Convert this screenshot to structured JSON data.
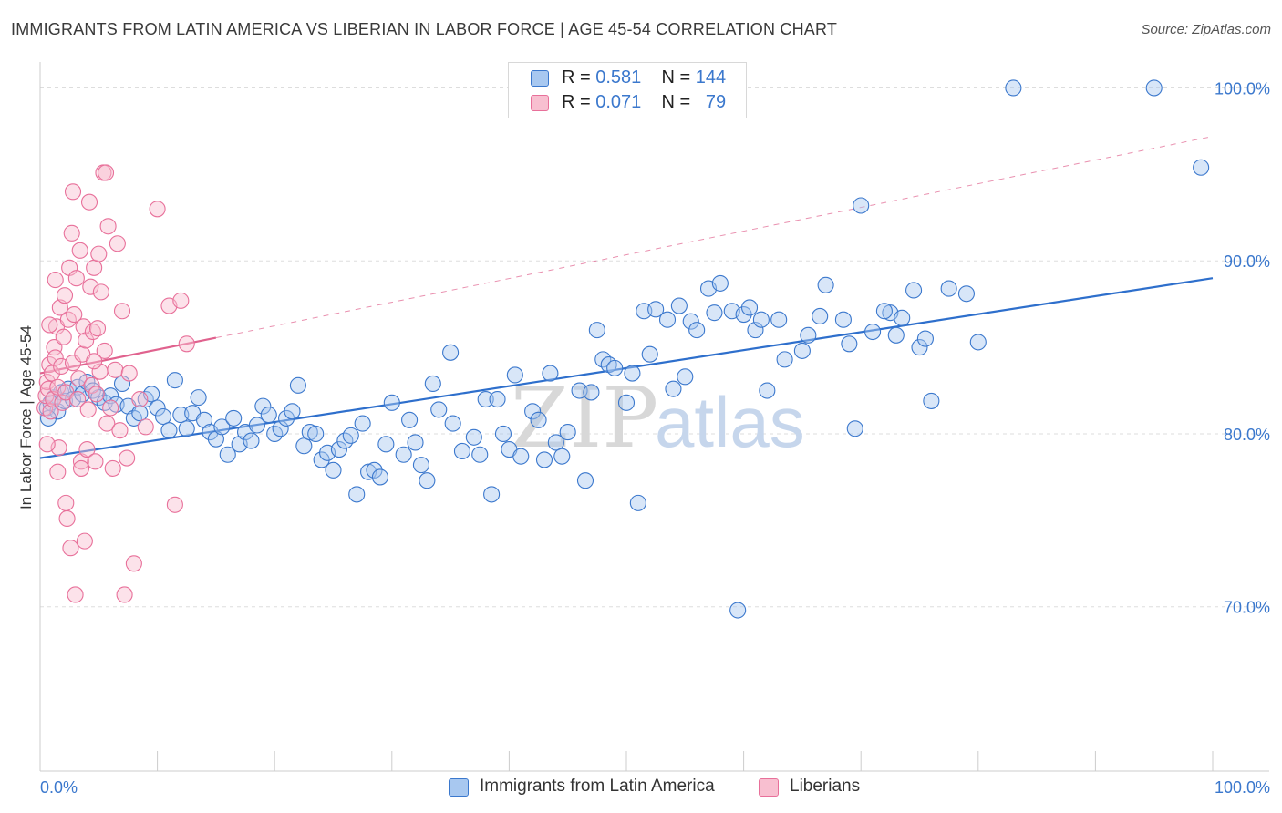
{
  "title": "IMMIGRANTS FROM LATIN AMERICA VS LIBERIAN IN LABOR FORCE | AGE 45-54 CORRELATION CHART",
  "source": "Source: ZipAtlas.com",
  "watermark": {
    "zip": "ZIP",
    "atlas": "atlas"
  },
  "legend_top": {
    "rows": [
      {
        "r_label": "R =",
        "r_value": "0.581",
        "n_label": "N =",
        "n_value": "144"
      },
      {
        "r_label": "R =",
        "r_value": "0.071",
        "n_label": "N =",
        "n_value": "79"
      }
    ]
  },
  "legend_bottom": {
    "items": [
      {
        "label": "Immigrants from Latin America"
      },
      {
        "label": "Liberians"
      }
    ]
  },
  "colors": {
    "blue_fill": "#a8c8f0",
    "blue_stroke": "#3b78cd",
    "blue_line": "#2e6fcc",
    "pink_fill": "#f8bfd0",
    "pink_stroke": "#e8709a",
    "pink_line": "#e0628e",
    "grid": "#dddddd",
    "axis_label": "#3b78cd"
  },
  "chart_data": {
    "type": "scatter",
    "title": "IMMIGRANTS FROM LATIN AMERICA VS LIBERIAN IN LABOR FORCE | AGE 45-54 CORRELATION CHART",
    "xlabel": "",
    "ylabel": "In Labor Force | Age 45-54",
    "xlim": [
      0,
      100
    ],
    "ylim": [
      60.5,
      101.5
    ],
    "x_tick_labels": [
      "0.0%",
      "100.0%"
    ],
    "y_ticks": [
      {
        "value": 70,
        "label": "70.0%"
      },
      {
        "value": 80,
        "label": "80.0%"
      },
      {
        "value": 90,
        "label": "90.0%"
      },
      {
        "value": 100,
        "label": "100.0%"
      }
    ],
    "series": [
      {
        "name": "Immigrants from Latin America",
        "R": 0.581,
        "N": 144,
        "trend": {
          "x0": 0,
          "y0": 78.6,
          "x1": 100,
          "y1": 89.0,
          "style": "solid"
        },
        "points": [
          [
            0.6,
            81.5
          ],
          [
            0.9,
            81.8
          ],
          [
            1.2,
            82.1
          ],
          [
            1.5,
            81.3
          ],
          [
            1.8,
            82.4
          ],
          [
            2.1,
            81.9
          ],
          [
            2.4,
            82.6
          ],
          [
            0.7,
            80.9
          ],
          [
            2.8,
            82.0
          ],
          [
            3.2,
            82.7
          ],
          [
            3.6,
            82.3
          ],
          [
            4.0,
            83.0
          ],
          [
            4.5,
            82.5
          ],
          [
            5.0,
            82.1
          ],
          [
            5.5,
            81.8
          ],
          [
            6.0,
            82.2
          ],
          [
            6.5,
            81.7
          ],
          [
            7.0,
            82.9
          ],
          [
            7.5,
            81.6
          ],
          [
            8.0,
            80.9
          ],
          [
            8.5,
            81.2
          ],
          [
            9.0,
            82.0
          ],
          [
            9.5,
            82.3
          ],
          [
            10.0,
            81.5
          ],
          [
            10.5,
            81.0
          ],
          [
            11.0,
            80.2
          ],
          [
            11.5,
            83.1
          ],
          [
            12.0,
            81.1
          ],
          [
            12.5,
            80.3
          ],
          [
            13.0,
            81.2
          ],
          [
            13.5,
            82.1
          ],
          [
            14.0,
            80.8
          ],
          [
            14.5,
            80.1
          ],
          [
            15.0,
            79.7
          ],
          [
            15.5,
            80.4
          ],
          [
            16.0,
            78.8
          ],
          [
            16.5,
            80.9
          ],
          [
            17.0,
            79.4
          ],
          [
            17.5,
            80.1
          ],
          [
            18.0,
            79.6
          ],
          [
            18.5,
            80.5
          ],
          [
            19.0,
            81.6
          ],
          [
            19.5,
            81.1
          ],
          [
            20.0,
            80.0
          ],
          [
            20.5,
            80.3
          ],
          [
            21.0,
            80.9
          ],
          [
            21.5,
            81.3
          ],
          [
            22.0,
            82.8
          ],
          [
            22.5,
            79.3
          ],
          [
            23.0,
            80.1
          ],
          [
            23.5,
            80.0
          ],
          [
            24.0,
            78.5
          ],
          [
            24.5,
            78.9
          ],
          [
            25.0,
            77.9
          ],
          [
            25.5,
            79.1
          ],
          [
            26.0,
            79.6
          ],
          [
            26.5,
            79.9
          ],
          [
            27.0,
            76.5
          ],
          [
            27.5,
            80.6
          ],
          [
            28.0,
            77.8
          ],
          [
            28.5,
            77.9
          ],
          [
            29.0,
            77.5
          ],
          [
            29.5,
            79.4
          ],
          [
            30.0,
            81.8
          ],
          [
            31.0,
            78.8
          ],
          [
            31.5,
            80.8
          ],
          [
            32.0,
            79.5
          ],
          [
            32.5,
            78.2
          ],
          [
            33.0,
            77.3
          ],
          [
            33.5,
            82.9
          ],
          [
            34.0,
            81.4
          ],
          [
            35.0,
            84.7
          ],
          [
            35.2,
            80.6
          ],
          [
            36.0,
            79.0
          ],
          [
            37.0,
            79.8
          ],
          [
            37.5,
            78.8
          ],
          [
            38.0,
            82.0
          ],
          [
            38.5,
            76.5
          ],
          [
            39.0,
            82.0
          ],
          [
            39.5,
            80.0
          ],
          [
            40.0,
            79.1
          ],
          [
            40.5,
            83.4
          ],
          [
            41.0,
            78.7
          ],
          [
            42.0,
            81.3
          ],
          [
            42.5,
            80.8
          ],
          [
            43.0,
            78.5
          ],
          [
            43.5,
            83.5
          ],
          [
            44.0,
            79.5
          ],
          [
            44.5,
            78.7
          ],
          [
            45.0,
            80.1
          ],
          [
            46.0,
            82.5
          ],
          [
            46.5,
            77.3
          ],
          [
            47.0,
            82.4
          ],
          [
            47.5,
            86.0
          ],
          [
            48.0,
            84.3
          ],
          [
            48.5,
            84.0
          ],
          [
            49.0,
            83.8
          ],
          [
            50.0,
            81.8
          ],
          [
            50.5,
            83.5
          ],
          [
            51.0,
            76.0
          ],
          [
            51.5,
            87.1
          ],
          [
            52.0,
            84.6
          ],
          [
            52.5,
            87.2
          ],
          [
            53.5,
            86.6
          ],
          [
            54.0,
            82.6
          ],
          [
            54.5,
            87.4
          ],
          [
            55.0,
            83.3
          ],
          [
            55.5,
            86.5
          ],
          [
            56.0,
            86.0
          ],
          [
            57.0,
            88.4
          ],
          [
            57.5,
            87.0
          ],
          [
            58.0,
            88.7
          ],
          [
            59.0,
            87.1
          ],
          [
            59.5,
            69.8
          ],
          [
            60.0,
            86.9
          ],
          [
            60.5,
            87.3
          ],
          [
            61.0,
            86.0
          ],
          [
            61.5,
            86.6
          ],
          [
            62.0,
            82.5
          ],
          [
            63.0,
            86.6
          ],
          [
            63.5,
            84.3
          ],
          [
            65.0,
            84.8
          ],
          [
            65.5,
            85.7
          ],
          [
            66.5,
            86.8
          ],
          [
            67.0,
            88.6
          ],
          [
            68.5,
            86.6
          ],
          [
            69.0,
            85.2
          ],
          [
            69.5,
            80.3
          ],
          [
            70.0,
            93.2
          ],
          [
            71.0,
            85.9
          ],
          [
            72.5,
            87.0
          ],
          [
            73.0,
            85.7
          ],
          [
            73.5,
            86.7
          ],
          [
            75.0,
            85.0
          ],
          [
            75.5,
            85.5
          ],
          [
            76.0,
            81.9
          ],
          [
            77.5,
            88.4
          ],
          [
            79.0,
            88.1
          ],
          [
            80.0,
            85.3
          ],
          [
            83.0,
            100.0
          ],
          [
            95.0,
            100.0
          ],
          [
            99.0,
            95.4
          ],
          [
            72.0,
            87.1
          ],
          [
            74.5,
            88.3
          ]
        ]
      },
      {
        "name": "Liberians",
        "R": 0.071,
        "N": 79,
        "trend": {
          "x0": 0,
          "y0": 83.5,
          "x1": 100,
          "y1": 97.2,
          "solid_until_x": 15,
          "style": "solid-then-dashed"
        },
        "points": [
          [
            0.4,
            81.5
          ],
          [
            0.5,
            82.2
          ],
          [
            0.6,
            83.0
          ],
          [
            0.7,
            82.6
          ],
          [
            0.8,
            84.0
          ],
          [
            0.9,
            81.3
          ],
          [
            1.0,
            83.5
          ],
          [
            1.1,
            82.0
          ],
          [
            1.2,
            85.0
          ],
          [
            1.3,
            84.4
          ],
          [
            1.4,
            86.2
          ],
          [
            1.5,
            82.7
          ],
          [
            1.6,
            79.2
          ],
          [
            1.7,
            87.3
          ],
          [
            1.8,
            83.9
          ],
          [
            1.9,
            81.8
          ],
          [
            2.0,
            85.6
          ],
          [
            2.1,
            88.0
          ],
          [
            2.2,
            82.4
          ],
          [
            2.3,
            75.1
          ],
          [
            2.4,
            86.6
          ],
          [
            2.5,
            89.6
          ],
          [
            2.6,
            73.4
          ],
          [
            2.7,
            91.6
          ],
          [
            2.8,
            84.1
          ],
          [
            2.9,
            86.9
          ],
          [
            3.0,
            70.7
          ],
          [
            3.1,
            89.0
          ],
          [
            3.2,
            82.0
          ],
          [
            3.3,
            83.2
          ],
          [
            3.4,
            90.6
          ],
          [
            3.5,
            78.4
          ],
          [
            3.6,
            84.6
          ],
          [
            3.7,
            86.2
          ],
          [
            3.8,
            73.8
          ],
          [
            3.9,
            85.4
          ],
          [
            4.0,
            79.1
          ],
          [
            4.1,
            81.4
          ],
          [
            4.2,
            93.4
          ],
          [
            4.3,
            88.5
          ],
          [
            4.4,
            82.8
          ],
          [
            4.5,
            85.9
          ],
          [
            4.6,
            89.6
          ],
          [
            4.7,
            78.4
          ],
          [
            4.8,
            82.3
          ],
          [
            4.9,
            86.1
          ],
          [
            5.0,
            90.4
          ],
          [
            5.1,
            83.6
          ],
          [
            5.2,
            88.2
          ],
          [
            5.4,
            95.1
          ],
          [
            5.5,
            84.8
          ],
          [
            5.6,
            95.1
          ],
          [
            5.7,
            80.6
          ],
          [
            5.8,
            92.0
          ],
          [
            6.0,
            81.5
          ],
          [
            6.2,
            78.0
          ],
          [
            6.4,
            83.7
          ],
          [
            6.6,
            91.0
          ],
          [
            6.8,
            80.2
          ],
          [
            7.0,
            87.1
          ],
          [
            7.2,
            70.7
          ],
          [
            7.4,
            78.6
          ],
          [
            7.6,
            83.5
          ],
          [
            8.0,
            72.5
          ],
          [
            8.5,
            82.0
          ],
          [
            9.0,
            80.4
          ],
          [
            10.0,
            93.0
          ],
          [
            11.0,
            87.4
          ],
          [
            11.5,
            75.9
          ],
          [
            12.0,
            87.7
          ],
          [
            12.5,
            85.2
          ],
          [
            1.3,
            88.9
          ],
          [
            0.6,
            79.4
          ],
          [
            2.2,
            76.0
          ],
          [
            1.5,
            77.8
          ],
          [
            3.5,
            78.0
          ],
          [
            2.8,
            94.0
          ],
          [
            0.8,
            86.3
          ],
          [
            4.6,
            84.2
          ]
        ]
      }
    ]
  }
}
